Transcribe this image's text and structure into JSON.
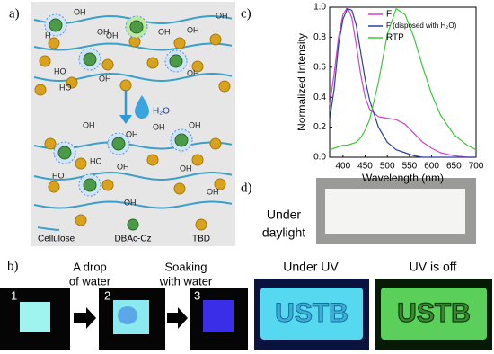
{
  "panel_a": {
    "label": "a)",
    "water": "H₂O",
    "hydroxyl_labels": [
      "OH",
      "OH",
      "OH",
      "H",
      "OH",
      "OH",
      "OH",
      "HO",
      "OH",
      "HO",
      "OH",
      "OH",
      "OH",
      "OH",
      "OH",
      "HO",
      "OH",
      "OH",
      "HO",
      "OH",
      "OH"
    ],
    "legend": [
      "Cellulose",
      "DBAc-Cz",
      "TBD"
    ]
  },
  "panel_b": {
    "label": "b)",
    "step_1": [
      "A drop",
      "of water"
    ],
    "step_2": [
      "Soaking",
      "with water"
    ],
    "numbers": [
      "1",
      "2",
      "3"
    ]
  },
  "panel_d": {
    "label": "d)",
    "daylight": [
      "Under",
      "daylight"
    ],
    "uv": "Under UV",
    "uv_off": "UV is off",
    "sample_text": "USTB"
  },
  "chart_data": {
    "type": "line",
    "panel_label": "c)",
    "xlabel": "Wavelength (nm)",
    "ylabel": "Normalized Intensity",
    "x": [
      370,
      380,
      390,
      400,
      410,
      420,
      430,
      440,
      450,
      460,
      480,
      500,
      520,
      540,
      560,
      580,
      600,
      620,
      650,
      680,
      700
    ],
    "series": [
      {
        "name": "F",
        "color": "#cc44cc",
        "values": [
          0.35,
          0.55,
          0.8,
          0.95,
          1.0,
          0.93,
          0.75,
          0.55,
          0.4,
          0.32,
          0.27,
          0.26,
          0.25,
          0.22,
          0.16,
          0.1,
          0.06,
          0.03,
          0.01,
          0.0,
          0.0
        ]
      },
      {
        "name": "F (disposed with H₂O)",
        "color": "#2a3fa0",
        "values": [
          0.25,
          0.45,
          0.75,
          0.92,
          0.99,
          0.98,
          0.88,
          0.7,
          0.52,
          0.38,
          0.2,
          0.1,
          0.05,
          0.03,
          0.01,
          0.0,
          0.0,
          0.0,
          0.0,
          0.0,
          0.0
        ]
      },
      {
        "name": "RTP",
        "color": "#3cc83c",
        "values": [
          0.05,
          0.06,
          0.07,
          0.08,
          0.08,
          0.09,
          0.1,
          0.13,
          0.18,
          0.25,
          0.5,
          0.82,
          0.99,
          0.95,
          0.8,
          0.6,
          0.42,
          0.28,
          0.15,
          0.08,
          0.05
        ]
      }
    ],
    "xlim": [
      370,
      700
    ],
    "xticks": [
      400,
      450,
      500,
      550,
      600,
      650,
      700
    ],
    "ylim": [
      0,
      1.0
    ],
    "yticks": [
      {
        "value": 0,
        "label": "0.0"
      },
      0.2,
      0.4,
      0.6,
      0.8,
      {
        "value": 1,
        "label": "1.0"
      }
    ],
    "grid": false,
    "legend": "upper right"
  }
}
